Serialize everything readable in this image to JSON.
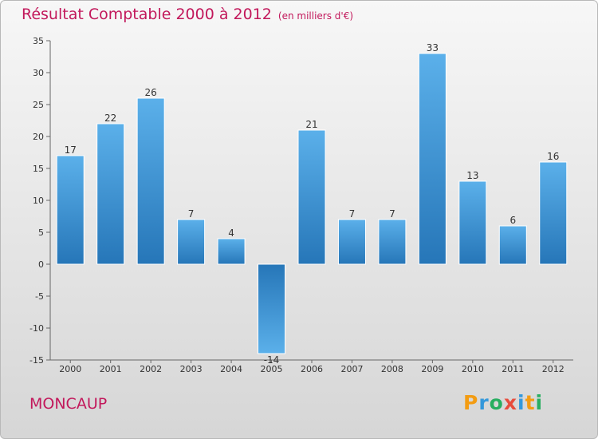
{
  "header": {
    "title": "Résultat Comptable 2000 à 2012",
    "subtitle": "(en milliers d'€)"
  },
  "footer": {
    "location": "MONCAUP",
    "logo": "Proxiti"
  },
  "colors": {
    "title": "#c2185b",
    "bar_light": "#5bb0ea",
    "bar_dark": "#2676b8",
    "logo_letters": [
      "#f39c12",
      "#3498db",
      "#27ae60",
      "#e74c3c",
      "#3498db",
      "#f39c12",
      "#27ae60"
    ]
  },
  "chart_data": {
    "type": "bar",
    "title": "Résultat Comptable 2000 à 2012",
    "subtitle": "(en milliers d'€)",
    "categories": [
      "2000",
      "2001",
      "2002",
      "2003",
      "2004",
      "2005",
      "2006",
      "2007",
      "2008",
      "2009",
      "2010",
      "2011",
      "2012"
    ],
    "values": [
      17,
      22,
      26,
      7,
      4,
      -14,
      21,
      7,
      7,
      33,
      13,
      6,
      16
    ],
    "ylim": [
      -15,
      35
    ],
    "yticks": [
      -15,
      -10,
      -5,
      0,
      5,
      10,
      15,
      20,
      25,
      30,
      35
    ],
    "grid": false,
    "xlabel": "",
    "ylabel": ""
  }
}
